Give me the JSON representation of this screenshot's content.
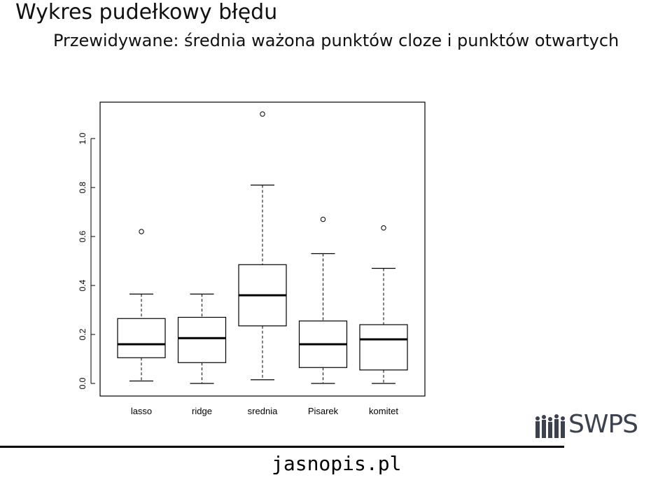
{
  "slide": {
    "title": "Wykres pudełkowy błędu",
    "subtitle": "Przewidywane: średnia ważona punktów cloze i punktów otwartych",
    "footer_url": "jasnopis.pl",
    "logo_text": "SWPS"
  },
  "chart_data": {
    "type": "boxplot",
    "title": "",
    "xlabel": "",
    "ylabel": "",
    "ylim": [
      0.0,
      1.1
    ],
    "y_ticks": [
      "0.0",
      "0.2",
      "0.4",
      "0.6",
      "0.8",
      "1.0"
    ],
    "categories": [
      "lasso",
      "ridge",
      "srednia",
      "Pisarek",
      "komitet"
    ],
    "boxes": [
      {
        "name": "lasso",
        "whisker_low": 0.01,
        "q1": 0.105,
        "median": 0.16,
        "q3": 0.265,
        "whisker_high": 0.365,
        "outliers": [
          0.62
        ]
      },
      {
        "name": "ridge",
        "whisker_low": 0.0,
        "q1": 0.085,
        "median": 0.185,
        "q3": 0.27,
        "whisker_high": 0.365,
        "outliers": []
      },
      {
        "name": "srednia",
        "whisker_low": 0.015,
        "q1": 0.235,
        "median": 0.36,
        "q3": 0.485,
        "whisker_high": 0.81,
        "outliers": [
          1.1
        ]
      },
      {
        "name": "Pisarek",
        "whisker_low": 0.0,
        "q1": 0.065,
        "median": 0.16,
        "q3": 0.255,
        "whisker_high": 0.53,
        "outliers": [
          0.67
        ]
      },
      {
        "name": "komitet",
        "whisker_low": 0.0,
        "q1": 0.055,
        "median": 0.18,
        "q3": 0.24,
        "whisker_high": 0.47,
        "outliers": [
          0.635
        ]
      }
    ],
    "grid": false,
    "legend": "none"
  }
}
